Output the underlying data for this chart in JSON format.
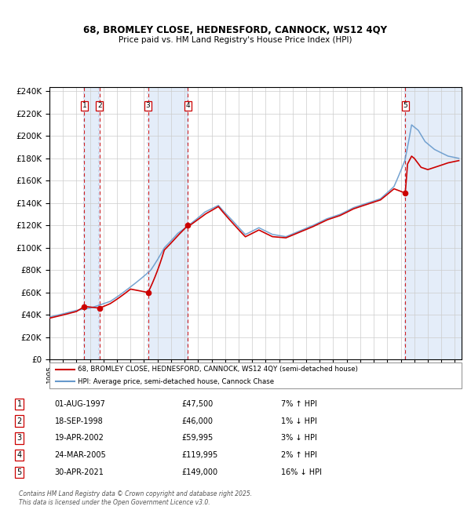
{
  "title_line1": "68, BROMLEY CLOSE, HEDNESFORD, CANNOCK, WS12 4QY",
  "title_line2": "Price paid vs. HM Land Registry's House Price Index (HPI)",
  "xlim_start": 1995.0,
  "xlim_end": 2025.5,
  "ylim_min": 0,
  "ylim_max": 244000,
  "ytick_step": 20000,
  "hpi_color": "#6699cc",
  "price_color": "#cc0000",
  "shade_color": "#dce8f8",
  "transactions": [
    {
      "num": 1,
      "date_str": "01-AUG-1997",
      "year": 1997.58,
      "price": 47500
    },
    {
      "num": 2,
      "date_str": "18-SEP-1998",
      "year": 1998.71,
      "price": 46000
    },
    {
      "num": 3,
      "date_str": "19-APR-2002",
      "year": 2002.3,
      "price": 59995
    },
    {
      "num": 4,
      "date_str": "24-MAR-2005",
      "year": 2005.23,
      "price": 119995
    },
    {
      "num": 5,
      "date_str": "30-APR-2021",
      "year": 2021.33,
      "price": 149000
    }
  ],
  "legend_line1": "68, BROMLEY CLOSE, HEDNESFORD, CANNOCK, WS12 4QY (semi-detached house)",
  "legend_line2": "HPI: Average price, semi-detached house, Cannock Chase",
  "footer": "Contains HM Land Registry data © Crown copyright and database right 2025.\nThis data is licensed under the Open Government Licence v3.0.",
  "table_rows": [
    {
      "num": 1,
      "date": "01-AUG-1997",
      "price": "£47,500",
      "rel": "7% ↑ HPI"
    },
    {
      "num": 2,
      "date": "18-SEP-1998",
      "price": "£46,000",
      "rel": "1% ↓ HPI"
    },
    {
      "num": 3,
      "date": "19-APR-2002",
      "price": "£59,995",
      "rel": "3% ↓ HPI"
    },
    {
      "num": 4,
      "date": "24-MAR-2005",
      "price": "£119,995",
      "rel": "2% ↑ HPI"
    },
    {
      "num": 5,
      "date": "30-APR-2021",
      "price": "£149,000",
      "rel": "16% ↓ HPI"
    }
  ]
}
